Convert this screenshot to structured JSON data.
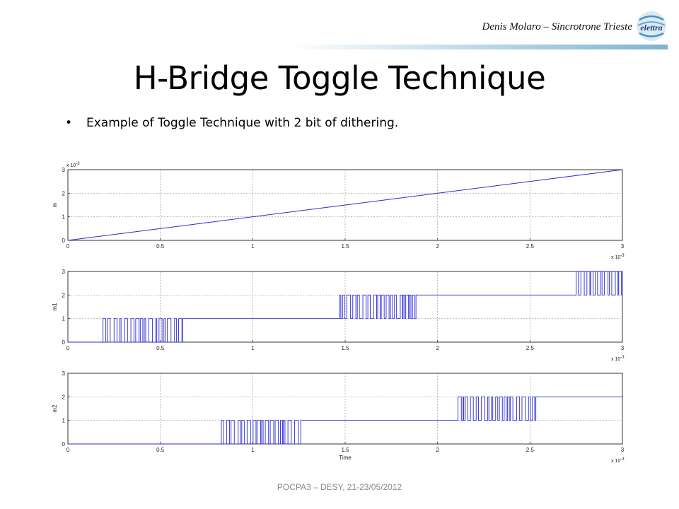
{
  "header": {
    "author": "Denis Molaro – Sincrotrone Trieste",
    "logo_text": "elettra"
  },
  "slide": {
    "title": "H-Bridge Toggle Technique",
    "bullet": "Example of Toggle Technique with 2 bit of dithering."
  },
  "footer": {
    "text": "POCPA3 – DESY, 21-23/05/2012"
  },
  "colors": {
    "trace": "#2a2ad8",
    "grid": "#9a9a9a",
    "axis": "#333333",
    "header_bar_end": "#7fb3d3"
  },
  "chart_data": [
    {
      "type": "line",
      "ylabel": "m",
      "x_tick_labels": [
        "0",
        "0.5",
        "1",
        "1.5",
        "2",
        "2.5",
        "3"
      ],
      "x_exponent": "x 10^-3",
      "y_tick_labels": [
        "0",
        "1",
        "2",
        "3"
      ],
      "y_exponent": "x 10^-3",
      "xlim": [
        0,
        0.003
      ],
      "ylim": [
        0,
        0.003
      ],
      "grid": true,
      "series": [
        {
          "x": [
            0,
            0.003
          ],
          "y": [
            0,
            0.003
          ]
        }
      ]
    },
    {
      "type": "line",
      "ylabel": "m1",
      "x_tick_labels": [
        "0",
        "0.5",
        "1",
        "1.5",
        "2",
        "2.5",
        "3"
      ],
      "x_exponent": "x 10^-3",
      "y_tick_labels": [
        "0",
        "1",
        "2",
        "3"
      ],
      "xlim": [
        0,
        0.003
      ],
      "ylim": [
        0,
        3
      ],
      "grid": true,
      "levels": [
        {
          "from": 0,
          "to": 0.00019,
          "low": 0,
          "high": 0
        },
        {
          "from": 0.00019,
          "to": 0.00062,
          "low": 0,
          "high": 1
        },
        {
          "from": 0.00062,
          "to": 0.00147,
          "low": 1,
          "high": 1
        },
        {
          "from": 0.00147,
          "to": 0.00189,
          "low": 1,
          "high": 2
        },
        {
          "from": 0.00189,
          "to": 0.00275,
          "low": 2,
          "high": 2
        },
        {
          "from": 0.00275,
          "to": 0.003,
          "low": 2,
          "high": 3
        }
      ]
    },
    {
      "type": "line",
      "ylabel": "m2",
      "xlabel": "Time",
      "x_tick_labels": [
        "0",
        "0.5",
        "1",
        "1.5",
        "2",
        "2.5",
        "3"
      ],
      "x_exponent": "x 10^-3",
      "y_tick_labels": [
        "0",
        "1",
        "2",
        "3"
      ],
      "xlim": [
        0,
        0.003
      ],
      "ylim": [
        0,
        3
      ],
      "grid": true,
      "levels": [
        {
          "from": 0,
          "to": 0.00083,
          "low": 0,
          "high": 0
        },
        {
          "from": 0.00083,
          "to": 0.00126,
          "low": 0,
          "high": 1
        },
        {
          "from": 0.00126,
          "to": 0.00211,
          "low": 1,
          "high": 1
        },
        {
          "from": 0.00211,
          "to": 0.00254,
          "low": 1,
          "high": 2
        },
        {
          "from": 0.00254,
          "to": 0.003,
          "low": 2,
          "high": 2
        }
      ]
    }
  ]
}
